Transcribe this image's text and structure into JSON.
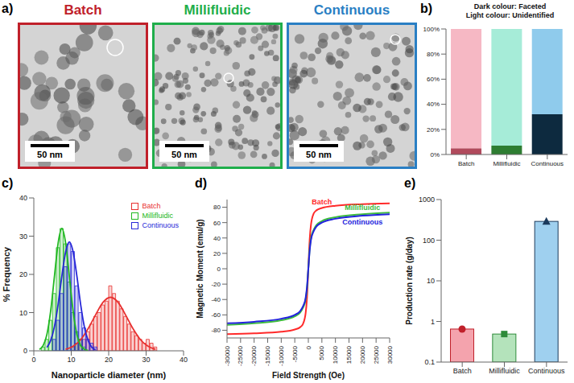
{
  "panel_a": {
    "label": "a)",
    "images": [
      {
        "title": "Batch",
        "color": "#c0202a",
        "scale_bar": "50 nm"
      },
      {
        "title": "Millifluidic",
        "color": "#1fae4b",
        "scale_bar": "50 nm"
      },
      {
        "title": "Continuous",
        "color": "#2a7fc4",
        "scale_bar": "50 nm"
      }
    ]
  },
  "chart_data": [
    {
      "panel": "b)",
      "type": "bar",
      "stacked": true,
      "annotations": [
        "Dark colour: Faceted",
        "Light colour: Unidentified"
      ],
      "categories": [
        "Batch",
        "Millifluidic",
        "Continuous"
      ],
      "series": [
        {
          "colors": [
            "#b04a5c",
            "#2e7d32",
            "#0d2a3f"
          ],
          "values": [
            5,
            7,
            32
          ]
        },
        {
          "colors": [
            "#f6b8c4",
            "#a6ecd8",
            "#8fcbec"
          ],
          "values": [
            95,
            93,
            68
          ]
        }
      ],
      "ylim": [
        0,
        100
      ],
      "yticks": [
        {
          "value": 0,
          "label": "0%"
        },
        {
          "value": 20,
          "label": "20%"
        },
        {
          "value": 40,
          "label": "40%"
        },
        {
          "value": 60,
          "label": "60%"
        },
        {
          "value": 80,
          "label": "80%"
        },
        {
          "value": 100,
          "label": "100%"
        }
      ]
    },
    {
      "panel": "c)",
      "type": "histogram",
      "xlabel": "Nanoparticle diameter (nm)",
      "ylabel": "% Frequency",
      "legend": "upper right",
      "bins": [
        0,
        1,
        2,
        3,
        4,
        5,
        6,
        7,
        8,
        9,
        10,
        11,
        12,
        13,
        14,
        15,
        16,
        17,
        18,
        19,
        20,
        21,
        22,
        23,
        24,
        25,
        26,
        27,
        28,
        29,
        30,
        31,
        32,
        33,
        34,
        35,
        36,
        37,
        38,
        39,
        40
      ],
      "xlim": [
        0,
        40
      ],
      "xticks": [
        0,
        10,
        20,
        30,
        40
      ],
      "ylim": [
        0,
        40
      ],
      "yticks": [
        0,
        10,
        20,
        30,
        40
      ],
      "series": [
        {
          "name": "Batch",
          "color": "#e8302f",
          "values": [
            0,
            0,
            0,
            0,
            0,
            0,
            0,
            0,
            0,
            0,
            1,
            2,
            3,
            3,
            5,
            7,
            9,
            10,
            12,
            13,
            17,
            15,
            13,
            11,
            9,
            7,
            5,
            4,
            3,
            2,
            3,
            2,
            1,
            0,
            0,
            0,
            0,
            0,
            0,
            0
          ],
          "fit": {
            "x": [
              8.5,
              10.5,
              12.5,
              14.5,
              16.5,
              18.5,
              20.5,
              22.5,
              24.5,
              26.5,
              28.5,
              30.5,
              32.5
            ],
            "values": [
              0.4,
              1.2,
              2.9,
              5.8,
              9.4,
              12.7,
              14,
              12.7,
              9.4,
              5.8,
              2.9,
              1.2,
              0.4
            ]
          }
        },
        {
          "name": "Millifluidic",
          "color": "#21b821",
          "values": [
            0,
            0,
            1,
            3,
            8,
            15,
            27,
            32,
            28,
            18,
            10,
            5,
            3,
            1,
            0,
            0,
            0,
            0,
            0,
            0,
            0,
            0,
            0,
            0,
            0,
            0,
            0,
            0,
            0,
            0,
            0,
            0,
            0,
            0,
            0,
            0,
            0,
            0,
            0,
            0
          ],
          "fit": {
            "x": [
              1.5,
              2.5,
              3.5,
              4.5,
              5.5,
              6.5,
              7.5,
              8.5,
              9.5,
              10.5,
              11.5,
              12.5,
              13.5,
              14.5
            ],
            "values": [
              0.4,
              1.4,
              4.3,
              10.4,
              19.4,
              28.2,
              32,
              28.2,
              19.4,
              10.4,
              4.3,
              1.4,
              0.4,
              0.1
            ]
          }
        },
        {
          "name": "Continuous",
          "color": "#2828d8",
          "values": [
            0,
            0,
            0,
            0,
            0,
            3,
            8,
            15,
            22,
            28,
            26,
            17,
            10,
            6,
            3,
            2,
            1,
            0,
            0,
            0,
            0,
            0,
            0,
            0,
            0,
            0,
            0,
            0,
            0,
            0,
            0,
            0,
            0,
            0,
            0,
            0,
            0,
            0,
            0,
            0
          ],
          "fit": {
            "x": [
              3.5,
              4.5,
              5.5,
              6.5,
              7.5,
              8.5,
              9.5,
              10.5,
              11.5,
              12.5,
              13.5,
              14.5,
              15.5,
              16.5
            ],
            "values": [
              0.9,
              2.7,
              6.3,
              12.2,
              19.6,
              25.9,
              28.5,
              25.9,
              19.6,
              12.2,
              6.3,
              2.7,
              0.9,
              0.3
            ]
          }
        }
      ]
    },
    {
      "panel": "d)",
      "type": "line",
      "xlabel": "Field Strength (Oe)",
      "ylabel": "Magnetic Moment (emu/g)",
      "x": [
        -30000,
        -20000,
        -10000,
        -5000,
        -3000,
        -2000,
        -1000,
        -500,
        0,
        500,
        1000,
        2000,
        3000,
        5000,
        10000,
        20000,
        30000
      ],
      "xlim": [
        -30000,
        30000
      ],
      "xticks": [
        -30000,
        -25000,
        -20000,
        -15000,
        -10000,
        -5000,
        0,
        5000,
        10000,
        15000,
        20000,
        25000,
        30000
      ],
      "ylim": [
        -90,
        90
      ],
      "yticks": [
        -80,
        -60,
        -40,
        -20,
        0,
        20,
        40,
        60,
        80
      ],
      "series": [
        {
          "name": "Batch",
          "color": "#ff2a2a",
          "values": [
            -85,
            -84,
            -82,
            -79,
            -76,
            -72,
            -58,
            -38,
            0,
            38,
            58,
            72,
            76,
            79,
            82,
            84,
            85
          ]
        },
        {
          "name": "Millifluidic",
          "color": "#3dbb3d",
          "values": [
            -73,
            -71,
            -67,
            -62,
            -57,
            -51,
            -40,
            -26,
            0,
            26,
            40,
            51,
            57,
            62,
            67,
            71,
            73
          ]
        },
        {
          "name": "Continuous",
          "color": "#2222dd",
          "values": [
            -71,
            -69,
            -65,
            -60,
            -55,
            -49,
            -38,
            -24,
            0,
            24,
            38,
            49,
            55,
            60,
            65,
            69,
            71
          ]
        }
      ]
    },
    {
      "panel": "e)",
      "type": "bar",
      "log": "y",
      "ylabel": "Production rate (g/day)",
      "categories": [
        "Batch",
        "Millifluidic",
        "Continuous"
      ],
      "values": [
        0.65,
        0.49,
        290
      ],
      "colors": [
        "#f4a3ad",
        "#b4e3bb",
        "#9fd0ef"
      ],
      "ylim": [
        0.1,
        1000
      ],
      "yticks": [
        0.1,
        1,
        10,
        100,
        1000
      ]
    }
  ]
}
